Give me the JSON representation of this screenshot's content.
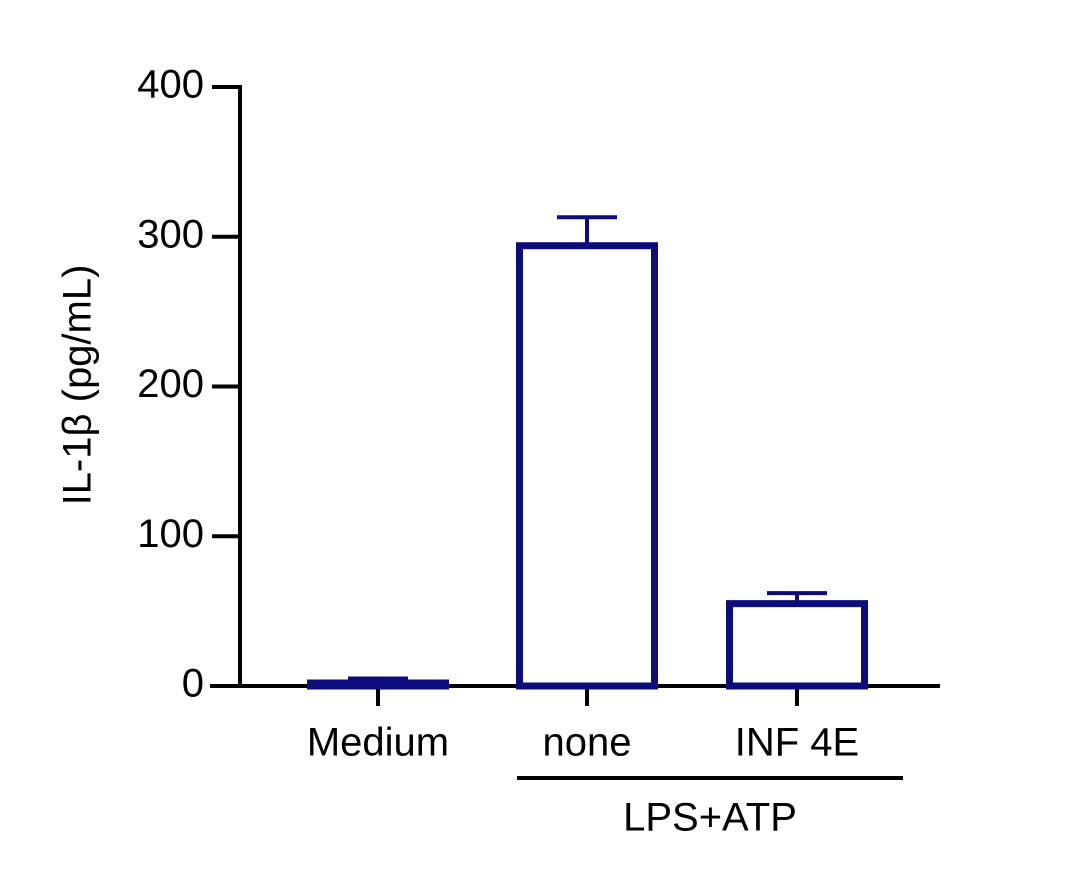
{
  "chart_data": {
    "type": "bar",
    "y_label": "IL-1β (pg/mL)",
    "categories": [
      "Medium",
      "none",
      "INF 4E"
    ],
    "values": [
      2,
      294,
      55
    ],
    "errors": [
      3,
      19,
      7
    ],
    "color": "#0c0c7c",
    "fill": "none",
    "groups": [
      {
        "name": "LPS+ATP",
        "members": [
          "none",
          "INF 4E"
        ]
      }
    ],
    "ylim": [
      0,
      400
    ],
    "yticks": [
      0,
      100,
      200,
      300,
      400
    ],
    "grid": false
  }
}
